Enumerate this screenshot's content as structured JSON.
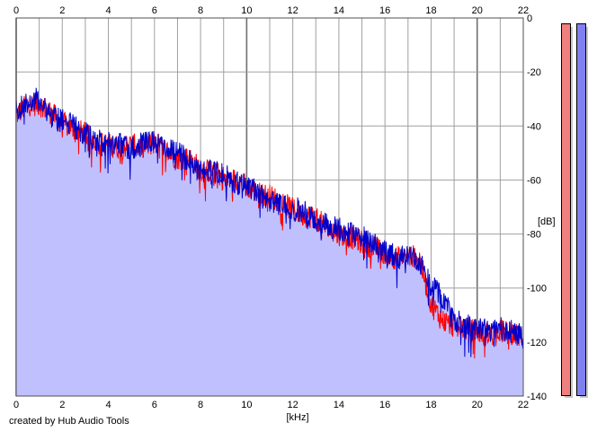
{
  "chart_data": {
    "type": "area",
    "x_axis": {
      "label": "[kHz]",
      "range": [
        0,
        22
      ],
      "ticks": [
        0,
        2,
        4,
        6,
        8,
        10,
        12,
        14,
        16,
        18,
        20,
        22
      ]
    },
    "y_axis": {
      "label": "[dB]",
      "range": [
        -140,
        0
      ],
      "ticks": [
        0,
        -20,
        -40,
        -60,
        -80,
        -100,
        -120,
        -140
      ],
      "position": "right"
    },
    "grid": true,
    "series": [
      {
        "color": "#ff0000",
        "x": [
          0,
          0.5,
          1,
          1.5,
          2,
          2.5,
          3,
          3.5,
          4,
          4.5,
          5,
          5.5,
          6,
          6.5,
          7,
          7.5,
          8,
          8.5,
          9,
          9.5,
          10,
          10.5,
          11,
          11.5,
          12,
          12.5,
          13,
          13.5,
          14,
          14.5,
          15,
          15.5,
          16,
          16.5,
          17,
          17.5,
          18,
          18.5,
          19,
          19.5,
          20,
          20.5,
          21,
          21.5,
          22
        ],
        "y": [
          -36,
          -32,
          -32,
          -35,
          -39,
          -41,
          -43,
          -46,
          -47,
          -48,
          -47,
          -48,
          -46,
          -49,
          -52,
          -52,
          -56,
          -57,
          -59,
          -60,
          -62,
          -65,
          -66,
          -68,
          -71,
          -73,
          -74,
          -78,
          -80,
          -81,
          -83,
          -85,
          -87,
          -89,
          -88,
          -89,
          -106,
          -112,
          -114,
          -115,
          -116,
          -117,
          -116,
          -117,
          -118
        ]
      },
      {
        "color": "#0000cc",
        "x": [
          0,
          0.5,
          1,
          1.5,
          2,
          2.5,
          3,
          3.5,
          4,
          4.5,
          5,
          5.5,
          6,
          6.5,
          7,
          7.5,
          8,
          8.5,
          9,
          9.5,
          10,
          10.5,
          11,
          11.5,
          12,
          12.5,
          13,
          13.5,
          14,
          14.5,
          15,
          15.5,
          16,
          16.5,
          17,
          17.5,
          18,
          18.5,
          19,
          19.5,
          20,
          20.5,
          21,
          21.5,
          22
        ],
        "y": [
          -34,
          -31,
          -30,
          -36,
          -38,
          -40,
          -43,
          -45,
          -46,
          -47,
          -48,
          -47,
          -45,
          -48,
          -50,
          -53,
          -56,
          -57,
          -58,
          -61,
          -62,
          -64,
          -67,
          -69,
          -70,
          -72,
          -75,
          -77,
          -78,
          -80,
          -81,
          -84,
          -86,
          -88,
          -87,
          -90,
          -99,
          -104,
          -112,
          -114,
          -115,
          -114,
          -115,
          -116,
          -118
        ]
      }
    ],
    "fill_color": "#c0c0ff",
    "background": "#ffffff",
    "gridline_color": "#a0a0a0",
    "major_gridline_color": "#707070"
  },
  "meters": [
    {
      "color": "#f08080"
    },
    {
      "color": "#8080f0"
    }
  ],
  "credit": "created by Hub Audio Tools"
}
